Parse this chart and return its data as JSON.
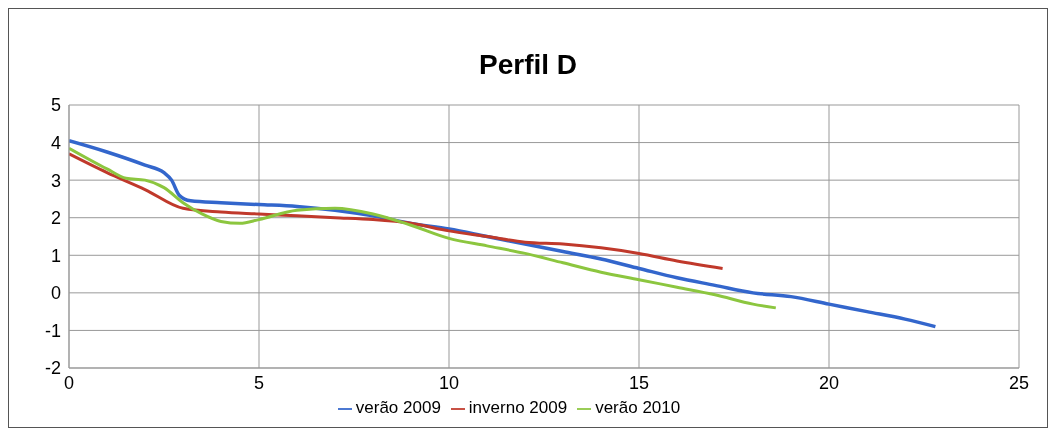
{
  "chart_data": {
    "type": "line",
    "title": "Perfil D",
    "xlim": [
      0,
      25
    ],
    "xticks": [
      0,
      5,
      10,
      15,
      20,
      25
    ],
    "ylim": [
      -2,
      5
    ],
    "yticks": [
      -2,
      -1,
      0,
      1,
      2,
      3,
      4,
      5
    ],
    "grid": true,
    "legend": "bottom",
    "marker": "none",
    "line_style": "solid",
    "series": [
      {
        "name": "verão 2009",
        "color": "#3366cc",
        "x": [
          0,
          1,
          2,
          2.5,
          2.7,
          2.9,
          3.2,
          4,
          5,
          6,
          7,
          8,
          9,
          10,
          11,
          12,
          13,
          14,
          15,
          16,
          17,
          18,
          19,
          20,
          21,
          22,
          22.8
        ],
        "values": [
          4.05,
          3.75,
          3.4,
          3.2,
          3.0,
          2.6,
          2.45,
          2.4,
          2.35,
          2.3,
          2.2,
          2.05,
          1.85,
          1.7,
          1.5,
          1.3,
          1.1,
          0.9,
          0.65,
          0.4,
          0.2,
          0.0,
          -0.1,
          -0.3,
          -0.5,
          -0.7,
          -0.9
        ]
      },
      {
        "name": "inverno 2009",
        "color": "#c0392b",
        "x": [
          0,
          1,
          2,
          3,
          4,
          5,
          6,
          7,
          8,
          9,
          10,
          11,
          12,
          13,
          14,
          15,
          16,
          17.2
        ],
        "values": [
          3.7,
          3.2,
          2.75,
          2.25,
          2.15,
          2.1,
          2.05,
          2.0,
          1.95,
          1.85,
          1.65,
          1.5,
          1.35,
          1.3,
          1.2,
          1.05,
          0.85,
          0.65
        ]
      },
      {
        "name": "verão 2010",
        "color": "#8cc63f",
        "x": [
          0,
          1,
          1.5,
          2,
          2.5,
          3,
          3.5,
          4,
          4.5,
          5,
          6,
          7,
          8,
          9,
          10,
          11,
          12,
          13,
          14,
          15,
          16,
          17,
          18,
          18.6
        ],
        "values": [
          3.85,
          3.3,
          3.05,
          3.0,
          2.8,
          2.4,
          2.1,
          1.9,
          1.85,
          1.95,
          2.2,
          2.25,
          2.1,
          1.8,
          1.45,
          1.25,
          1.05,
          0.8,
          0.55,
          0.35,
          0.15,
          -0.05,
          -0.3,
          -0.4
        ]
      }
    ]
  }
}
